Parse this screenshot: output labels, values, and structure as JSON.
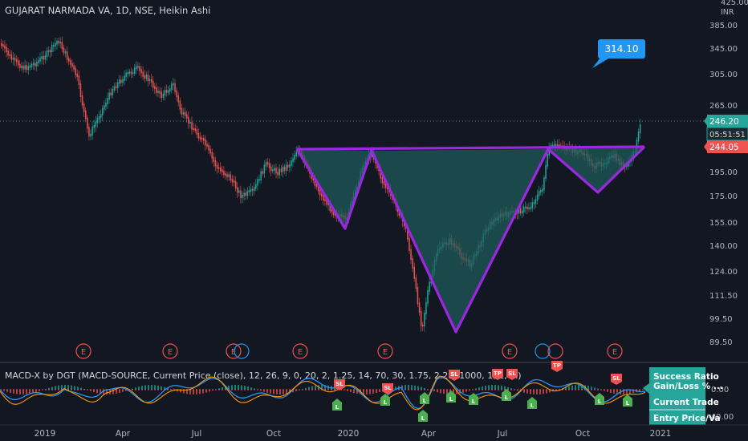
{
  "header": {
    "title": "GUJARAT NARMADA VA, 1D, NSE, Heikin Ashi",
    "top_tick": "425.00",
    "currency": "INR"
  },
  "price_axis": {
    "ticks": [
      "385.00",
      "345.00",
      "305.00",
      "265.00",
      "195.00",
      "175.00",
      "155.00",
      "140.00",
      "124.00",
      "111.50",
      "99.50",
      "89.50"
    ]
  },
  "badges": {
    "current_price": "246.20",
    "countdown": "05:51:51",
    "level": "244.05",
    "target": "314.10"
  },
  "events": [
    "E",
    "E",
    "E",
    "E",
    "E",
    "E",
    "E"
  ],
  "indicator": {
    "title": "MACD-X by DGT (MACD-SOURCE, Current Price (close), 12, 26, 9, 0, 20, 2, 1.25, 14, 70, 30, 1.75, 2.25, 1000, 1, 1, hl)",
    "ticks": [
      "0.00",
      "-40.00"
    ],
    "panel_lines": [
      "Success Ratio",
      "Gain/Loss % ...",
      "Current Trade",
      "Entry Price/Va"
    ]
  },
  "signals": [
    "L",
    "SL",
    "L",
    "SL",
    "L",
    "L",
    "SL",
    "L",
    "TP",
    "SL",
    "L",
    "L",
    "TP",
    "L",
    "SL",
    "L",
    "L"
  ],
  "time_axis": [
    "2019",
    "Apr",
    "Jul",
    "Oct",
    "2020",
    "Apr",
    "Jul",
    "Oct",
    "2021"
  ],
  "colors": {
    "background": "#131722",
    "up": "#26a69a",
    "down": "#ef5350",
    "pattern": "#9c27e0",
    "pattern_fill": "#1f5c5a",
    "signal_long": "#4caf50",
    "signal_short": "#ef5350",
    "target_badge": "#2196f3"
  }
}
